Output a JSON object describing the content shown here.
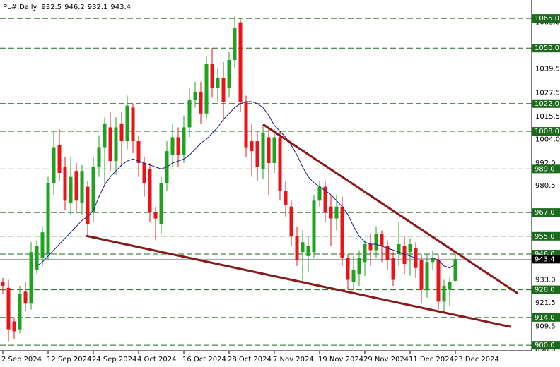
{
  "chart_data": {
    "type": "candlestick",
    "title": "PL#,Daily",
    "categories": [
      "2 Sep 2024",
      null,
      null,
      null,
      null,
      null,
      null,
      null,
      "12 Sep 2024",
      null,
      null,
      null,
      null,
      null,
      null,
      null,
      "24 Sep 2024",
      null,
      null,
      null,
      null,
      null,
      null,
      null,
      "4 Oct 2024",
      null,
      null,
      null,
      null,
      null,
      null,
      null,
      "16 Oct 2024",
      null,
      null,
      null,
      null,
      null,
      null,
      null,
      "28 Oct 2024",
      null,
      null,
      null,
      null,
      null,
      null,
      null,
      "7 Nov 2024",
      null,
      null,
      null,
      null,
      null,
      null,
      null,
      "19 Nov 2024",
      null,
      null,
      null,
      null,
      null,
      null,
      null,
      "29 Nov 2024",
      null,
      null,
      null,
      null,
      null,
      null,
      null,
      "11 Dec 2024",
      null,
      null,
      null,
      null,
      null,
      null,
      null,
      "23 Dec 2024"
    ],
    "open": [
      932,
      929,
      912,
      908,
      927,
      921,
      938,
      944,
      946,
      982,
      1001,
      990,
      972,
      988,
      972,
      980,
      967,
      990,
      1000,
      1010,
      993,
      1012,
      1003,
      1020,
      1003,
      992,
      989,
      967,
      961,
      982,
      996,
      1005,
      996,
      1010,
      1024,
      1028,
      1017,
      1042,
      1030,
      1035,
      1030,
      1044,
      1063,
      1023,
      1003,
      1003,
      989,
      1005,
      992,
      1005,
      978,
      970,
      955,
      947,
      945,
      947,
      973,
      980,
      970,
      964,
      970,
      944,
      932,
      936,
      942,
      951,
      948,
      956,
      950,
      944,
      946,
      950,
      947,
      949,
      943,
      928,
      942,
      943,
      922,
      928,
      932.5
    ],
    "high": [
      934,
      933,
      914,
      930,
      932,
      952,
      953,
      960,
      985,
      1008,
      1009,
      995,
      995,
      992,
      991,
      983,
      995,
      1006,
      1015,
      1018,
      1015,
      1018,
      1026,
      1022,
      1006,
      995,
      992,
      970,
      985,
      1003,
      1012,
      1010,
      1016,
      1030,
      1033,
      1033,
      1046,
      1050,
      1040,
      1043,
      1048,
      1066,
      1065,
      1026,
      1012,
      1008,
      1011,
      1010,
      1009,
      1008,
      983,
      973,
      960,
      958,
      955,
      976,
      983,
      983,
      976,
      976,
      975,
      946,
      945,
      948,
      953,
      956,
      960,
      958,
      953,
      947,
      962,
      955,
      954,
      952,
      946,
      946,
      948,
      946,
      933,
      934,
      946.2
    ],
    "low": [
      926,
      902,
      903,
      906,
      917,
      918,
      936,
      940,
      943,
      976,
      983,
      968,
      966,
      967,
      966,
      955,
      962,
      985,
      980,
      988,
      986,
      990,
      999,
      997,
      985,
      975,
      962,
      953,
      956,
      978,
      990,
      990,
      992,
      1005,
      1020,
      1012,
      1014,
      1025,
      1023,
      1013,
      1025,
      1040,
      1018,
      995,
      985,
      983,
      984,
      976,
      987,
      973,
      965,
      950,
      940,
      932,
      937,
      944,
      970,
      962,
      950,
      958,
      940,
      928,
      928,
      930,
      935,
      940,
      944,
      942,
      938,
      930,
      940,
      936,
      935,
      934,
      921,
      924,
      938,
      918,
      916,
      920,
      932.1
    ],
    "close": [
      930,
      908,
      907,
      926,
      921,
      947,
      950,
      957,
      982,
      1000,
      987,
      973,
      985,
      973,
      988,
      961,
      990,
      1000,
      1012,
      993,
      1010,
      1003,
      1021,
      1003,
      992,
      982,
      967,
      964,
      982,
      998,
      1005,
      996,
      1010,
      1024,
      1028,
      1017,
      1042,
      1030,
      1035,
      1023,
      1044,
      1060,
      1023,
      1000,
      998,
      990,
      1007,
      992,
      1005,
      978,
      971,
      955,
      943,
      952,
      950,
      973,
      980,
      967,
      964,
      970,
      944,
      933,
      938,
      944,
      951,
      948,
      956,
      950,
      943,
      933,
      951,
      941,
      951,
      939,
      928,
      942,
      944,
      922,
      930,
      932,
      943.4
    ],
    "up_color": "#1fa31f",
    "down_color": "#e8141a",
    "ma": {
      "color": "#1b1b8a",
      "values": [
        null,
        null,
        null,
        null,
        null,
        null,
        940,
        942,
        945,
        948,
        951,
        954,
        957,
        960,
        963,
        965,
        968,
        975,
        981,
        985,
        988,
        991,
        993,
        994,
        993,
        992,
        991,
        990,
        989,
        990,
        992,
        993,
        994,
        996,
        999,
        1002,
        1004,
        1007,
        1010,
        1014,
        1017,
        1020,
        1022,
        1023,
        1023,
        1022,
        1020,
        1016,
        1011,
        1008,
        1005,
        1001,
        996,
        990,
        985,
        982,
        980,
        978,
        976,
        973,
        970,
        966,
        960,
        955,
        952,
        951,
        951,
        950,
        949,
        948,
        947,
        946,
        945,
        944,
        944,
        944,
        944,
        943,
        940,
        939,
        941
      ]
    },
    "trendlines": [
      {
        "color": "#8b1a1a",
        "x": [
          46,
          91.1
        ],
        "y": [
          1011.5,
          926
        ]
      },
      {
        "color": "#8b1a1a",
        "x": [
          14.75,
          89.75
        ],
        "y": [
          955.2,
          909.3
        ]
      }
    ],
    "levels": [
      {
        "value": 1065,
        "label": "1065.0"
      },
      {
        "value": 1050,
        "label": "1050.0"
      },
      {
        "value": 1022,
        "label": "1022.0"
      },
      {
        "value": 1008,
        "label": "1008.0"
      },
      {
        "value": 989,
        "label": "989.0"
      },
      {
        "value": 967,
        "label": "967.0"
      },
      {
        "value": 955,
        "label": "955.0"
      },
      {
        "value": 946,
        "label": "946.0"
      },
      {
        "value": 928,
        "label": "928.0"
      },
      {
        "value": 914,
        "label": "914.0"
      },
      {
        "value": 900,
        "label": "900.0"
      }
    ],
    "level_color": "#1d6b1d",
    "xlim": [
      -0.5,
      93.5
    ],
    "ylim": [
      897.2,
      1074.3
    ],
    "yticks": [
      {
        "value": 1063,
        "label": "1063.0"
      },
      1039.5,
      1027.5,
      1015.5,
      {
        "value": 1004,
        "label": "1004.0"
      },
      {
        "value": 992,
        "label": "992.0"
      },
      980.5,
      {
        "value": 933,
        "label": "933.0"
      },
      921.5,
      909.5,
      {
        "value": 898,
        "label": "898.0"
      }
    ]
  }
}
